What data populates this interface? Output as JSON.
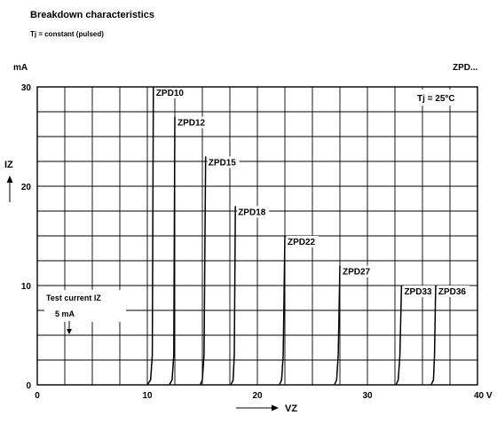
{
  "chart_data": {
    "type": "line",
    "title": "Breakdown characteristics",
    "subtitle": "Tj = constant (pulsed)",
    "family_label": "ZPD...",
    "condition": "Tj = 25°C",
    "y_axis": {
      "label": "IZ",
      "unit": "mA",
      "ylim": [
        0,
        30
      ],
      "ticks": [
        0,
        10,
        20,
        30
      ],
      "grid_step": 2.5
    },
    "x_axis": {
      "label": "VZ",
      "unit": "V",
      "xlim": [
        0,
        40
      ],
      "ticks": [
        0,
        10,
        20,
        30,
        40
      ],
      "tick_labels": [
        "0",
        "10",
        "20",
        "30",
        "40 V"
      ],
      "grid_step": 2.5
    },
    "grid": true,
    "series": [
      {
        "name": "ZPD10",
        "x": [
          10.0,
          10.3,
          10.45,
          10.55
        ],
        "y": [
          0,
          0.5,
          3,
          30
        ]
      },
      {
        "name": "ZPD12",
        "x": [
          12.0,
          12.25,
          12.4,
          12.5
        ],
        "y": [
          0,
          0.5,
          3,
          27
        ]
      },
      {
        "name": "ZPD15",
        "x": [
          14.8,
          15.0,
          15.15,
          15.3
        ],
        "y": [
          0,
          0.5,
          3,
          23
        ]
      },
      {
        "name": "ZPD18",
        "x": [
          17.6,
          17.8,
          17.9,
          18.0
        ],
        "y": [
          0,
          0.5,
          3,
          18
        ]
      },
      {
        "name": "ZPD22",
        "x": [
          22.0,
          22.2,
          22.35,
          22.5
        ],
        "y": [
          0,
          0.5,
          3,
          15
        ]
      },
      {
        "name": "ZPD27",
        "x": [
          27.0,
          27.2,
          27.35,
          27.5
        ],
        "y": [
          0,
          0.5,
          3,
          12
        ]
      },
      {
        "name": "ZPD33",
        "x": [
          32.6,
          32.8,
          32.95,
          33.1
        ],
        "y": [
          0,
          0.5,
          3,
          10
        ]
      },
      {
        "name": "ZPD36",
        "x": [
          35.8,
          36.0,
          36.1,
          36.2
        ],
        "y": [
          0,
          0.5,
          3,
          10
        ]
      }
    ],
    "reference_line": {
      "y": 5,
      "style": "dashed"
    },
    "annotations": {
      "test_current": "Test current IZ",
      "test_current_value": "5 mA"
    }
  }
}
